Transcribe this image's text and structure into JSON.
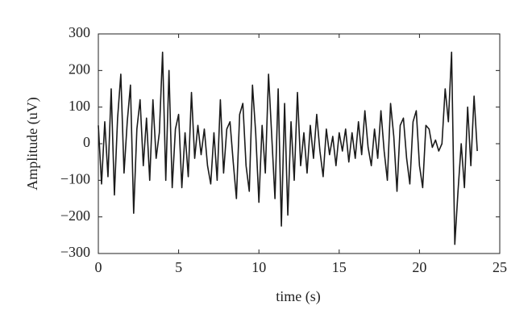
{
  "chart_data": {
    "type": "line",
    "x_label": "time (s)",
    "y_label": "Amplitude (uV)",
    "x": [
      0,
      0.2,
      0.4,
      0.6,
      0.8,
      1,
      1.2,
      1.4,
      1.6,
      1.8,
      2,
      2.2,
      2.4,
      2.6,
      2.8,
      3,
      3.2,
      3.4,
      3.6,
      3.8,
      4,
      4.2,
      4.4,
      4.6,
      4.8,
      5,
      5.2,
      5.4,
      5.6,
      5.8,
      6,
      6.2,
      6.4,
      6.6,
      6.8,
      7,
      7.2,
      7.4,
      7.6,
      7.8,
      8,
      8.2,
      8.4,
      8.6,
      8.8,
      9,
      9.2,
      9.4,
      9.6,
      9.8,
      10,
      10.2,
      10.4,
      10.6,
      10.8,
      11,
      11.2,
      11.4,
      11.6,
      11.8,
      12,
      12.2,
      12.4,
      12.6,
      12.8,
      13,
      13.2,
      13.4,
      13.6,
      13.8,
      14,
      14.2,
      14.4,
      14.6,
      14.8,
      15,
      15.2,
      15.4,
      15.6,
      15.8,
      16,
      16.2,
      16.4,
      16.6,
      16.8,
      17,
      17.2,
      17.4,
      17.6,
      17.8,
      18,
      18.2,
      18.4,
      18.6,
      18.8,
      19,
      19.2,
      19.4,
      19.6,
      19.8,
      20,
      20.2,
      20.4,
      20.6,
      20.8,
      21,
      21.2,
      21.4,
      21.6,
      21.8,
      22,
      22.2,
      22.4,
      22.6,
      22.8,
      23,
      23.2,
      23.4,
      23.6
    ],
    "series": [
      {
        "color": "#1a1a1a",
        "values": [
          50,
          -110,
          60,
          -90,
          150,
          -140,
          70,
          190,
          -80,
          60,
          160,
          -190,
          40,
          120,
          -60,
          70,
          -100,
          120,
          -40,
          30,
          250,
          -100,
          200,
          -120,
          40,
          80,
          -120,
          30,
          -90,
          140,
          -40,
          50,
          -30,
          40,
          -60,
          -110,
          30,
          -100,
          120,
          -80,
          40,
          60,
          -50,
          -150,
          80,
          110,
          -60,
          -130,
          160,
          30,
          -160,
          50,
          -80,
          190,
          20,
          -150,
          150,
          -225,
          110,
          -195,
          60,
          -100,
          140,
          -60,
          30,
          -80,
          50,
          -40,
          80,
          -20,
          -90,
          40,
          -30,
          20,
          -60,
          30,
          -20,
          40,
          -50,
          30,
          -40,
          60,
          -30,
          90,
          -10,
          -60,
          40,
          -40,
          90,
          -20,
          -100,
          110,
          20,
          -130,
          50,
          70,
          -40,
          -110,
          60,
          90,
          -60,
          -120,
          50,
          40,
          -10,
          10,
          -20,
          0,
          150,
          60,
          250,
          -275,
          -130,
          0,
          -120,
          100,
          -60,
          130,
          -20
        ]
      }
    ],
    "xlim": [
      0,
      25
    ],
    "xticks": [
      0,
      5,
      10,
      15,
      20,
      25
    ],
    "ylim": [
      -300,
      300
    ],
    "yticks": [
      {
        "value": -300,
        "label": "−300"
      },
      {
        "value": -200,
        "label": "−200"
      },
      {
        "value": -100,
        "label": "−100"
      },
      0,
      100,
      200,
      300
    ]
  }
}
